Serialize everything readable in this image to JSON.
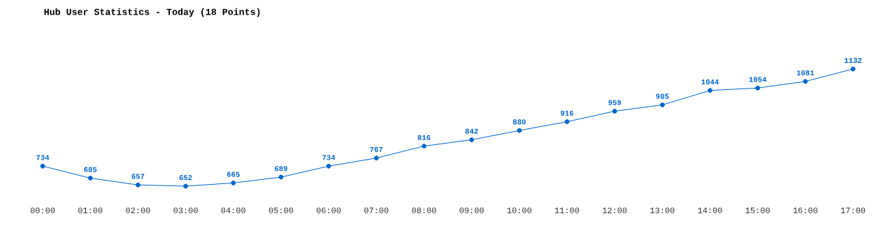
{
  "chart_data": {
    "type": "line",
    "title": "Hub User Statistics - Today (18 Points)",
    "categories": [
      "00:00",
      "01:00",
      "02:00",
      "03:00",
      "04:00",
      "05:00",
      "06:00",
      "07:00",
      "08:00",
      "09:00",
      "10:00",
      "11:00",
      "12:00",
      "13:00",
      "14:00",
      "15:00",
      "16:00",
      "17:00"
    ],
    "values": [
      734,
      685,
      657,
      652,
      665,
      689,
      734,
      767,
      816,
      842,
      880,
      916,
      959,
      985,
      1044,
      1054,
      1081,
      1132
    ],
    "color": "#0066cc",
    "marker": "circle",
    "line_style": "solid",
    "data_labels": true,
    "grid": false
  }
}
